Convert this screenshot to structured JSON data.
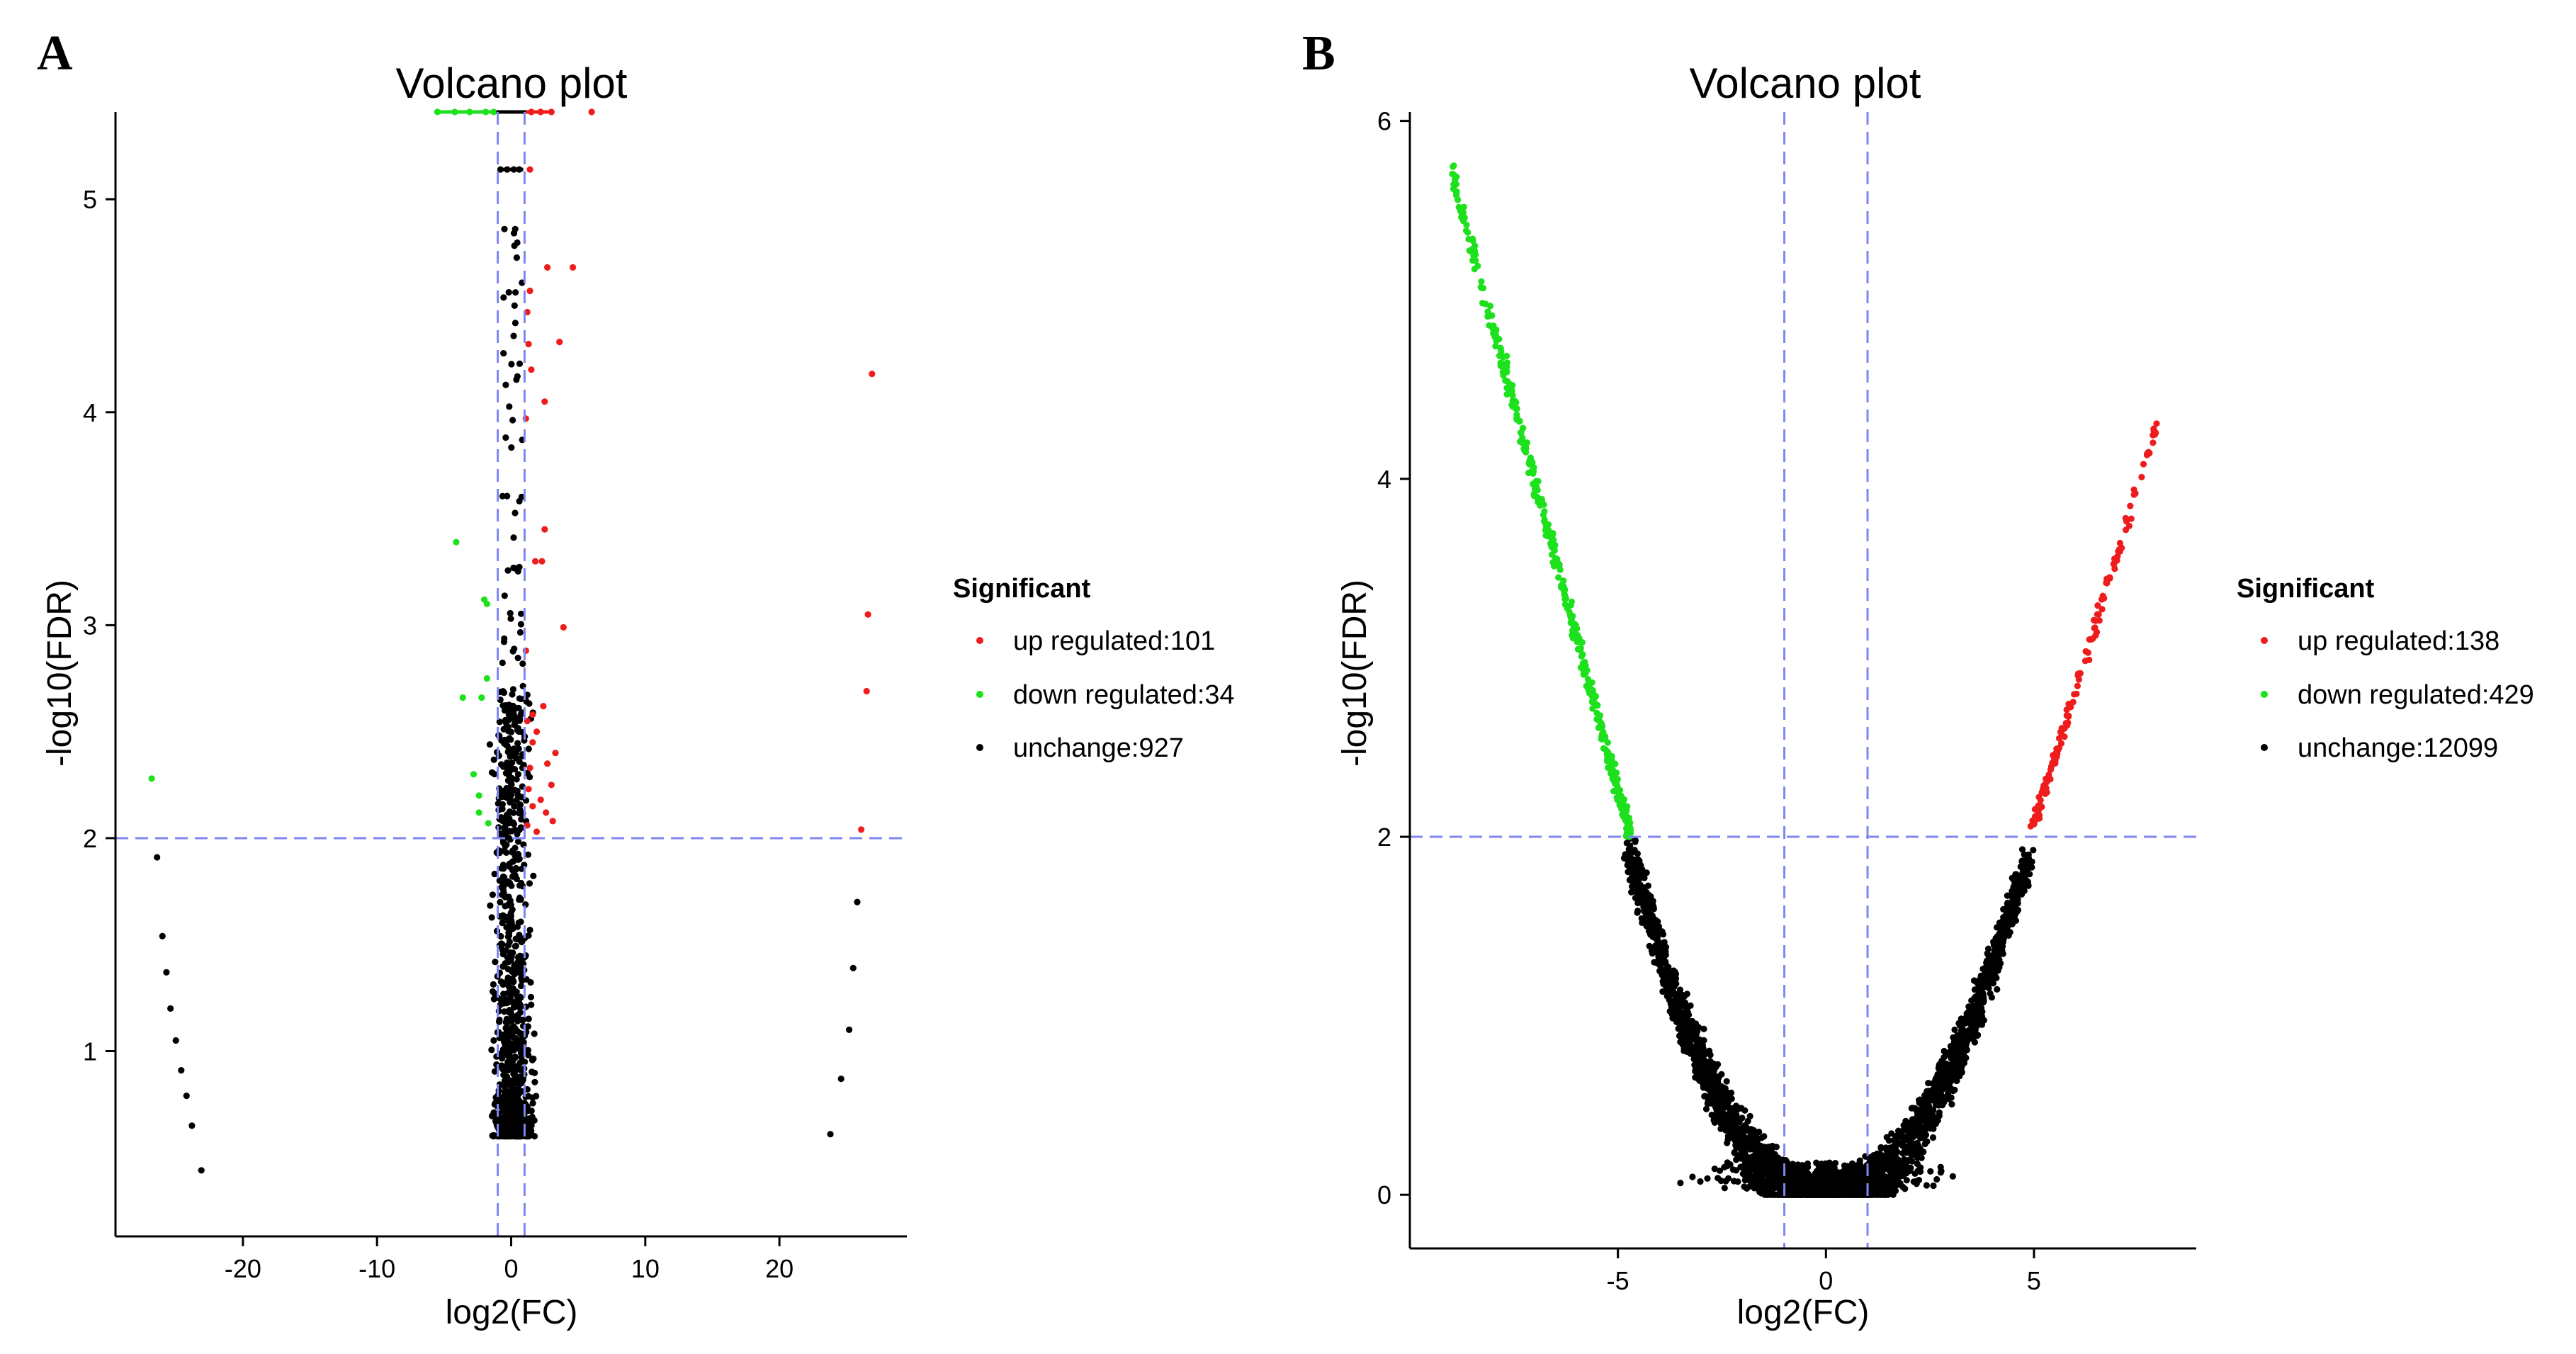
{
  "chart_data": [
    {
      "panel": "A",
      "type": "scatter",
      "title": "Volcano plot",
      "xlabel": "log2(FC)",
      "ylabel": "-log10(FDR)",
      "xlim": [
        -29.5,
        29.5
      ],
      "ylim": [
        0.13,
        5.41
      ],
      "xticks": [
        -20,
        -10,
        0,
        10,
        20
      ],
      "yticks": [
        1,
        2,
        3,
        4,
        5
      ],
      "thresholds": {
        "fc_lines": [
          -1,
          1
        ],
        "fdr_line": 2
      },
      "legend": {
        "title": "Significant",
        "entries": [
          {
            "label": "up regulated:101",
            "color": "#ee1c1c"
          },
          {
            "label": "down regulated:34",
            "color": "#1ce11c"
          },
          {
            "label": "unchange:927",
            "color": "#000000"
          }
        ]
      },
      "series": [
        {
          "name": "up regulated",
          "color": "#ee1c1c",
          "points": [
            [
              26.9,
              4.18
            ],
            [
              26.6,
              3.05
            ],
            [
              26.5,
              2.69
            ],
            [
              26.1,
              2.04
            ],
            [
              4.6,
              4.68
            ],
            [
              2.7,
              4.68
            ],
            [
              1.4,
              4.57
            ],
            [
              1.2,
              4.47
            ],
            [
              1.3,
              4.32
            ],
            [
              3.6,
              4.33
            ],
            [
              1.5,
              4.2
            ],
            [
              2.5,
              4.05
            ],
            [
              1.1,
              3.97
            ],
            [
              2.5,
              3.45
            ],
            [
              1.8,
              3.3
            ],
            [
              2.3,
              3.3
            ],
            [
              3.9,
              2.99
            ],
            [
              1.1,
              2.88
            ],
            [
              2.4,
              2.62
            ],
            [
              1.6,
              2.58
            ],
            [
              1.2,
              2.55
            ],
            [
              1.9,
              2.5
            ],
            [
              1.6,
              2.45
            ],
            [
              3.3,
              2.4
            ],
            [
              2.7,
              2.35
            ],
            [
              1.4,
              2.33
            ],
            [
              3.0,
              2.25
            ],
            [
              1.3,
              2.23
            ],
            [
              2.2,
              2.18
            ],
            [
              1.6,
              2.15
            ],
            [
              2.6,
              2.12
            ],
            [
              3.1,
              2.08
            ],
            [
              1.2,
              2.06
            ],
            [
              1.9,
              2.03
            ],
            [
              1.5,
              5.41
            ],
            [
              2.2,
              5.41
            ],
            [
              3.0,
              5.41
            ],
            [
              6.0,
              5.41
            ],
            [
              1.4,
              5.14
            ]
          ]
        },
        {
          "name": "down regulated",
          "color": "#1ce11c",
          "points": [
            [
              -26.8,
              2.28
            ],
            [
              -4.1,
              3.39
            ],
            [
              -2.0,
              3.12
            ],
            [
              -1.8,
              3.1
            ],
            [
              -1.8,
              2.75
            ],
            [
              -3.6,
              2.66
            ],
            [
              -2.2,
              2.66
            ],
            [
              -2.8,
              2.3
            ],
            [
              -2.4,
              2.2
            ],
            [
              -2.4,
              2.12
            ],
            [
              -1.7,
              2.07
            ],
            [
              -5.5,
              5.41
            ],
            [
              -4.2,
              5.41
            ],
            [
              -3.1,
              5.41
            ],
            [
              -1.9,
              5.41
            ],
            [
              -1.3,
              5.41
            ]
          ]
        },
        {
          "name": "unchange",
          "color": "#000000",
          "points": [
            [
              -26.4,
              1.91
            ],
            [
              -26.0,
              1.54
            ],
            [
              -25.7,
              1.37
            ],
            [
              -25.4,
              1.2
            ],
            [
              -25.0,
              1.05
            ],
            [
              -24.6,
              0.91
            ],
            [
              -24.2,
              0.79
            ],
            [
              -23.8,
              0.65
            ],
            [
              -23.1,
              0.44
            ],
            [
              25.8,
              1.7
            ],
            [
              25.5,
              1.39
            ],
            [
              25.2,
              1.1
            ],
            [
              24.6,
              0.87
            ],
            [
              23.8,
              0.61
            ],
            [
              -0.8,
              5.14
            ],
            [
              -0.3,
              5.14
            ],
            [
              0.2,
              5.14
            ],
            [
              0.6,
              5.14
            ],
            [
              -0.5,
              4.86
            ],
            [
              0.3,
              4.86
            ],
            [
              -1.0,
              1.25
            ],
            [
              -1.3,
              1.05
            ]
          ]
        }
      ],
      "cloud": {
        "center_x": 0.1,
        "spread_x": 1.2,
        "y_top": 5.0,
        "y_bottom": 0.6,
        "density_min_y": 0.6,
        "density_max_y": 2.7
      }
    },
    {
      "panel": "B",
      "type": "scatter",
      "title": "Volcano plot",
      "xlabel": "log2(FC)",
      "ylabel": "-log10(FDR)",
      "xlim": [
        -10.0,
        8.9
      ],
      "ylim": [
        -0.3,
        6.05
      ],
      "xticks": [
        -5,
        0,
        5
      ],
      "yticks": [
        0,
        2,
        4,
        6
      ],
      "thresholds": {
        "fc_lines": [
          -1,
          1
        ],
        "fdr_line": 2
      },
      "legend": {
        "title": "Significant",
        "entries": [
          {
            "label": "up regulated:138",
            "color": "#ee1c1c"
          },
          {
            "label": "down regulated:429",
            "color": "#1ce11c"
          },
          {
            "label": "unchange:12099",
            "color": "#000000"
          }
        ]
      },
      "series": [
        {
          "name": "down regulated",
          "color": "#1ce11c",
          "x_range": [
            -9.0,
            -4.7
          ],
          "y_range": [
            2.0,
            5.73
          ]
        },
        {
          "name": "up regulated",
          "color": "#ee1c1c",
          "x_range": [
            4.9,
            8.0
          ],
          "y_range": [
            2.0,
            4.32
          ]
        },
        {
          "name": "unchange",
          "color": "#000000",
          "x_range": [
            -4.8,
            4.9
          ],
          "y_range": [
            0.0,
            2.0
          ]
        }
      ]
    }
  ]
}
